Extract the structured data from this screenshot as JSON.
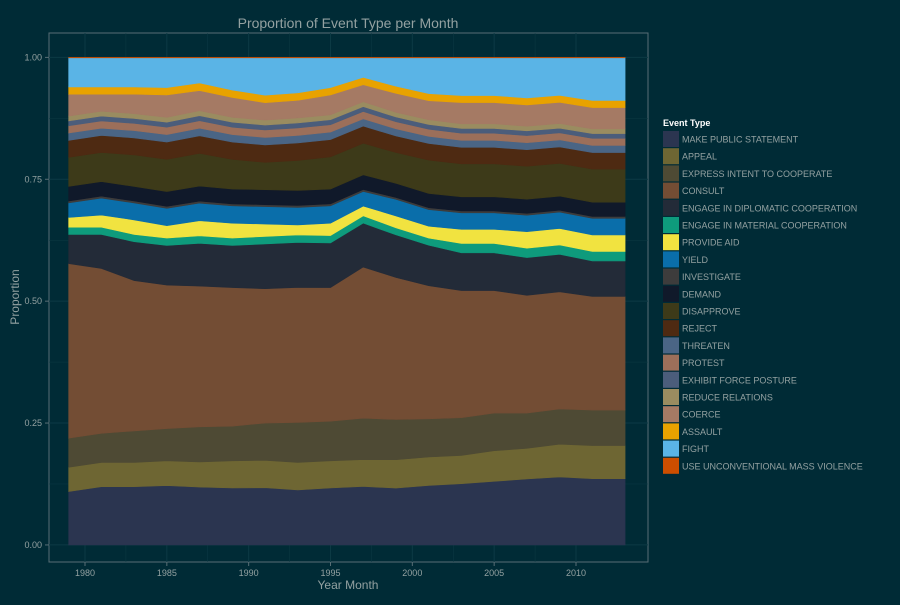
{
  "chart_data": {
    "type": "area",
    "stacked": true,
    "title": "Proportion of Event Type per Month",
    "xlabel": "Year Month",
    "ylabel": "Proportion",
    "xlim": [
      1977.8,
      2014.4
    ],
    "ylim": [
      -0.035,
      1.05
    ],
    "x_ticks": [
      1980,
      1985,
      1990,
      1995,
      2000,
      2005,
      2010
    ],
    "x_tick_labels": [
      "1980",
      "1985",
      "1990",
      "1995",
      "2000",
      "2005",
      "2010"
    ],
    "y_ticks": [
      0.0,
      0.25,
      0.5,
      0.75,
      1.0
    ],
    "y_tick_labels": [
      "0.00",
      "0.25",
      "0.50",
      "0.75",
      "1.00"
    ],
    "grid": true,
    "legend_title": "Event Type",
    "legend_position": "right",
    "x": [
      1979,
      1981,
      1983,
      1985,
      1987,
      1989,
      1991,
      1993,
      1995,
      1997,
      1999,
      2001,
      2003,
      2005,
      2007,
      2009,
      2011,
      2013
    ],
    "series": [
      {
        "name": "MAKE PUBLIC STATEMENT",
        "color": "#2b3550",
        "values": [
          0.11,
          0.12,
          0.12,
          0.12,
          0.115,
          0.115,
          0.115,
          0.11,
          0.115,
          0.12,
          0.12,
          0.125,
          0.13,
          0.135,
          0.14,
          0.145,
          0.14,
          0.14
        ]
      },
      {
        "name": "APPEAL",
        "color": "#6e6633",
        "values": [
          0.05,
          0.05,
          0.05,
          0.05,
          0.05,
          0.055,
          0.055,
          0.055,
          0.055,
          0.055,
          0.06,
          0.06,
          0.06,
          0.065,
          0.065,
          0.07,
          0.07,
          0.07
        ]
      },
      {
        "name": "EXPRESS INTENT TO COOPERATE",
        "color": "#4e4a34",
        "values": [
          0.06,
          0.06,
          0.065,
          0.065,
          0.07,
          0.07,
          0.075,
          0.08,
          0.08,
          0.085,
          0.085,
          0.08,
          0.08,
          0.08,
          0.075,
          0.075,
          0.075,
          0.075
        ]
      },
      {
        "name": "CONSULT",
        "color": "#734d34",
        "values": [
          0.36,
          0.34,
          0.31,
          0.29,
          0.28,
          0.28,
          0.27,
          0.27,
          0.27,
          0.31,
          0.3,
          0.28,
          0.27,
          0.26,
          0.25,
          0.25,
          0.24,
          0.24
        ]
      },
      {
        "name": "ENGAGE IN DIPLOMATIC COOPERATION",
        "color": "#232b38",
        "values": [
          0.06,
          0.07,
          0.08,
          0.08,
          0.085,
          0.085,
          0.09,
          0.09,
          0.09,
          0.09,
          0.09,
          0.085,
          0.08,
          0.08,
          0.08,
          0.08,
          0.075,
          0.075
        ]
      },
      {
        "name": "ENGAGE IN MATERIAL COOPERATION",
        "color": "#0e9b7c",
        "values": [
          0.015,
          0.015,
          0.015,
          0.015,
          0.015,
          0.015,
          0.015,
          0.015,
          0.015,
          0.015,
          0.015,
          0.015,
          0.02,
          0.02,
          0.02,
          0.02,
          0.02,
          0.02
        ]
      },
      {
        "name": "PROVIDE AID",
        "color": "#f1e340",
        "values": [
          0.02,
          0.025,
          0.03,
          0.025,
          0.03,
          0.03,
          0.025,
          0.02,
          0.025,
          0.02,
          0.025,
          0.025,
          0.03,
          0.03,
          0.035,
          0.035,
          0.035,
          0.035
        ]
      },
      {
        "name": "YIELD",
        "color": "#0a6eaa",
        "values": [
          0.03,
          0.035,
          0.035,
          0.035,
          0.035,
          0.035,
          0.035,
          0.035,
          0.035,
          0.03,
          0.035,
          0.035,
          0.035,
          0.035,
          0.035,
          0.035,
          0.035,
          0.035
        ]
      },
      {
        "name": "INVESTIGATE",
        "color": "#3d3c3c",
        "values": [
          0.004,
          0.004,
          0.004,
          0.004,
          0.004,
          0.004,
          0.004,
          0.004,
          0.004,
          0.004,
          0.004,
          0.004,
          0.004,
          0.004,
          0.004,
          0.004,
          0.004,
          0.004
        ]
      },
      {
        "name": "DEMAND",
        "color": "#10192a",
        "values": [
          0.03,
          0.03,
          0.03,
          0.03,
          0.03,
          0.03,
          0.03,
          0.03,
          0.03,
          0.03,
          0.03,
          0.03,
          0.03,
          0.03,
          0.03,
          0.03,
          0.03,
          0.03
        ]
      },
      {
        "name": "DISAPPROVE",
        "color": "#3d3a19",
        "values": [
          0.06,
          0.06,
          0.065,
          0.065,
          0.065,
          0.06,
          0.055,
          0.06,
          0.065,
          0.065,
          0.065,
          0.07,
          0.07,
          0.07,
          0.07,
          0.07,
          0.07,
          0.07
        ]
      },
      {
        "name": "REJECT",
        "color": "#4e2a12",
        "values": [
          0.035,
          0.035,
          0.035,
          0.035,
          0.035,
          0.035,
          0.035,
          0.035,
          0.035,
          0.035,
          0.035,
          0.035,
          0.035,
          0.035,
          0.035,
          0.035,
          0.035,
          0.035
        ]
      },
      {
        "name": "THREATEN",
        "color": "#4a6585",
        "values": [
          0.015,
          0.015,
          0.015,
          0.015,
          0.015,
          0.015,
          0.015,
          0.015,
          0.015,
          0.015,
          0.015,
          0.015,
          0.015,
          0.015,
          0.015,
          0.015,
          0.015,
          0.015
        ]
      },
      {
        "name": "PROTEST",
        "color": "#9c6f5a",
        "values": [
          0.015,
          0.015,
          0.015,
          0.015,
          0.015,
          0.015,
          0.015,
          0.015,
          0.015,
          0.015,
          0.015,
          0.015,
          0.015,
          0.015,
          0.015,
          0.015,
          0.015,
          0.015
        ]
      },
      {
        "name": "EXHIBIT FORCE POSTURE",
        "color": "#4b5d7b",
        "values": [
          0.01,
          0.01,
          0.01,
          0.01,
          0.01,
          0.01,
          0.01,
          0.01,
          0.01,
          0.01,
          0.01,
          0.01,
          0.01,
          0.01,
          0.01,
          0.01,
          0.01,
          0.01
        ]
      },
      {
        "name": "REDUCE RELATIONS",
        "color": "#9a8c60",
        "values": [
          0.01,
          0.01,
          0.01,
          0.01,
          0.01,
          0.01,
          0.01,
          0.01,
          0.01,
          0.01,
          0.01,
          0.01,
          0.01,
          0.01,
          0.01,
          0.01,
          0.01,
          0.01
        ]
      },
      {
        "name": "COERCE",
        "color": "#a57a64",
        "values": [
          0.045,
          0.035,
          0.04,
          0.045,
          0.04,
          0.04,
          0.035,
          0.035,
          0.04,
          0.035,
          0.04,
          0.04,
          0.045,
          0.045,
          0.045,
          0.045,
          0.045,
          0.045
        ]
      },
      {
        "name": "ASSAULT",
        "color": "#e8a200",
        "values": [
          0.015,
          0.015,
          0.015,
          0.015,
          0.015,
          0.015,
          0.015,
          0.015,
          0.015,
          0.015,
          0.015,
          0.015,
          0.015,
          0.015,
          0.015,
          0.015,
          0.015,
          0.015
        ]
      },
      {
        "name": "FIGHT",
        "color": "#5ab4e6",
        "values": [
          0.06,
          0.06,
          0.06,
          0.06,
          0.05,
          0.065,
          0.075,
          0.07,
          0.06,
          0.04,
          0.06,
          0.075,
          0.08,
          0.08,
          0.085,
          0.08,
          0.09,
          0.09
        ]
      },
      {
        "name": "USE UNCONVENTIONAL MASS VIOLENCE",
        "color": "#cc4e00",
        "values": [
          0.001,
          0.001,
          0.001,
          0.001,
          0.001,
          0.001,
          0.001,
          0.001,
          0.001,
          0.001,
          0.001,
          0.001,
          0.001,
          0.001,
          0.001,
          0.001,
          0.001,
          0.001
        ]
      }
    ]
  },
  "theme": {
    "background": "#002b36",
    "panel_border": "#586e75",
    "grid": "#0c3a45",
    "text": "#93a1a1"
  }
}
